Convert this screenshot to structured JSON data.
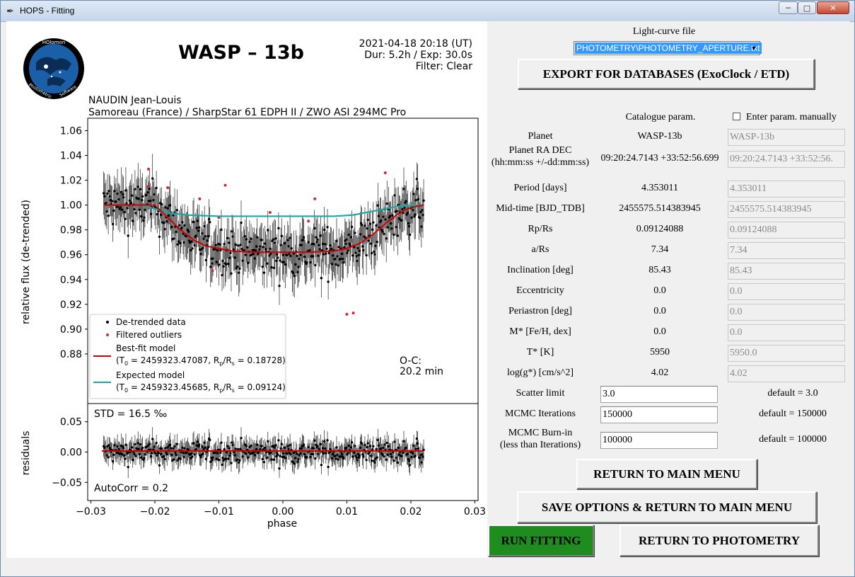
{
  "window": {
    "title": "HOPS - Fitting"
  },
  "plot": {
    "title": "WASP – 13b",
    "datetime": "2021-04-18 20:18 (UT)",
    "duration": "Dur: 5.2h / Exp: 30.0s",
    "filter": "Filter: Clear",
    "observer": "NAUDIN Jean-Louis",
    "location": "Samoreau (France) / SharpStar 61 EDPH II / ZWO ASI 294MC Pro",
    "ylabel_top": "relative flux (de-trended)",
    "ylabel_bottom": "residuals",
    "xlabel": "phase",
    "oc_label": "O-C:",
    "oc_value": "20.2 min",
    "std": "STD = 16.5 ‰",
    "autocorr": "AutoCorr = 0.2",
    "logo_top": "HOlomon",
    "logo_left": "Photometric",
    "logo_right": "Software",
    "legend": {
      "detrended": "De-trended data",
      "outliers": "Filtered outliers",
      "bestfit": "Best-fit model",
      "bestfit_params_t0": "(T",
      "bestfit_params_rest": " = 2459323.47087, R",
      "bestfit_params_end": " = 0.18728)",
      "expected": "Expected model",
      "expected_params_t0": "(T",
      "expected_params_rest": " = 2459323.45685, R",
      "expected_params_end": " = 0.09124)"
    }
  },
  "chart_data": [
    {
      "type": "scatter",
      "xlabel": "phase",
      "ylabel": "relative flux (de-trended)",
      "xlim": [
        -0.0305,
        0.0305
      ],
      "ylim": [
        0.84,
        1.07
      ],
      "yticks": [
        0.88,
        0.9,
        0.92,
        0.94,
        0.96,
        0.98,
        1.0,
        1.02,
        1.04,
        1.06
      ],
      "series": [
        {
          "name": "De-trended data",
          "x_range": [
            -0.028,
            0.022
          ],
          "y_mean_out": 0.998,
          "y_mean_in": 0.962
        },
        {
          "name": "Filtered outliers",
          "x": [
            -0.021,
            -0.021,
            -0.018,
            -0.013,
            -0.011,
            -0.01,
            -0.009,
            -0.002,
            0.004,
            0.005,
            0.01,
            0.011,
            0.016
          ],
          "y": [
            1.029,
            1.015,
            1.014,
            1.005,
            0.947,
            0.99,
            1.016,
            0.994,
            0.987,
            1.005,
            0.912,
            0.913,
            1.026
          ]
        },
        {
          "name": "Best-fit model",
          "x": [
            -0.028,
            -0.02,
            -0.018,
            -0.016,
            -0.014,
            -0.012,
            -0.01,
            -0.008,
            -0.004,
            0.0,
            0.004,
            0.008,
            0.01,
            0.012,
            0.014,
            0.016,
            0.018,
            0.02,
            0.022
          ],
          "y": [
            1.0,
            1.0,
            0.99,
            0.98,
            0.972,
            0.967,
            0.965,
            0.963,
            0.962,
            0.962,
            0.962,
            0.963,
            0.965,
            0.969,
            0.976,
            0.985,
            0.993,
            0.998,
            1.0
          ]
        },
        {
          "name": "Expected model",
          "x": [
            -0.028,
            -0.022,
            -0.02,
            -0.018,
            -0.015,
            -0.01,
            0.0,
            0.008,
            0.011,
            0.013,
            0.015,
            0.018,
            0.022
          ],
          "y": [
            1.0,
            1.0,
            0.997,
            0.994,
            0.992,
            0.991,
            0.991,
            0.991,
            0.992,
            0.994,
            0.996,
            0.999,
            1.0
          ]
        }
      ]
    },
    {
      "type": "scatter",
      "xlabel": "phase",
      "ylabel": "residuals",
      "xlim": [
        -0.0305,
        0.0305
      ],
      "ylim": [
        -0.08,
        0.08
      ],
      "xticks": [
        -0.03,
        -0.02,
        -0.01,
        0.0,
        0.01,
        0.02,
        0.03
      ],
      "yticks": [
        -0.05,
        0.0,
        0.05
      ],
      "std_permil": 16.5,
      "autocorr": 0.2
    }
  ],
  "right": {
    "lc_file_label": "Light-curve file",
    "lc_file_value": "PHOTOMETRY\\PHOTOMETRY_APERTURE.txt",
    "export_button": "EXPORT FOR DATABASES (ExoClock / ETD)",
    "catalogue_header": "Catalogue param.",
    "manual_label": "Enter param. manually",
    "params": [
      {
        "label": "Planet",
        "catalogue": "WASP-13b",
        "entry": "WASP-13b"
      },
      {
        "label": "Planet RA DEC\n(hh:mm:ss +/-dd:mm:ss)",
        "catalogue": "09:20:24.7143 +33:52:56.699",
        "entry": "09:20:24.7143 +33:52:56."
      },
      {
        "label": "Period [days]",
        "catalogue": "4.353011",
        "entry": "4.353011"
      },
      {
        "label": "Mid-time [BJD_TDB]",
        "catalogue": "2455575.514383945",
        "entry": "2455575.514383945"
      },
      {
        "label": "Rp/Rs",
        "catalogue": "0.09124088",
        "entry": "0.09124088"
      },
      {
        "label": "a/Rs",
        "catalogue": "7.34",
        "entry": "7.34"
      },
      {
        "label": "Inclination [deg]",
        "catalogue": "85.43",
        "entry": "85.43"
      },
      {
        "label": "Eccentricity",
        "catalogue": "0.0",
        "entry": "0.0"
      },
      {
        "label": "Periastron [deg]",
        "catalogue": "0.0",
        "entry": "0.0"
      },
      {
        "label": "M* [Fe/H, dex]",
        "catalogue": "0.0",
        "entry": "0.0"
      },
      {
        "label": "T* [K]",
        "catalogue": "5950",
        "entry": "5950.0"
      },
      {
        "label": "log(g*) [cm/s^2]",
        "catalogue": "4.02",
        "entry": "4.02"
      }
    ],
    "options": [
      {
        "label": "Scatter limit",
        "value": "3.0",
        "default": "default = 3.0"
      },
      {
        "label": "MCMC Iterations",
        "value": "150000",
        "default": "default = 150000"
      },
      {
        "label": "MCMC Burn-in\n(less than Iterations)",
        "value": "100000",
        "default": "default = 100000"
      }
    ],
    "return_main": "RETURN TO MAIN MENU",
    "save_return": "SAVE OPTIONS & RETURN TO MAIN MENU",
    "run_fitting": "RUN FITTING",
    "return_photometry": "RETURN TO PHOTOMETRY"
  },
  "colors": {
    "data": "#000000",
    "outliers": "#d62728",
    "bestfit": "#cc0000",
    "expected": "#17a8a8",
    "run_button": "#1e8c1e"
  }
}
